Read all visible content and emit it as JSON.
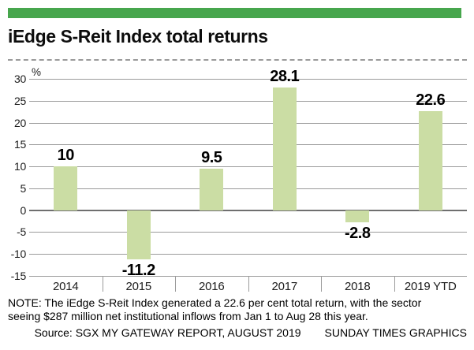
{
  "header": {
    "title": "iEdge S-Reit Index total returns"
  },
  "colors": {
    "accent_green": "#47a64d",
    "bar_green": "#cbdda4",
    "grid_gray": "#9b9b9b",
    "zero_line_gray": "#6f6f6f"
  },
  "chart_data": {
    "type": "bar",
    "title": "iEdge S-Reit Index total returns",
    "categories": [
      "2014",
      "2015",
      "2016",
      "2017",
      "2018",
      "2019 YTD"
    ],
    "values": [
      10,
      -11.2,
      9.5,
      28.1,
      -2.8,
      22.6
    ],
    "value_labels": [
      "10",
      "-11.2",
      "9.5",
      "28.1",
      "-2.8",
      "22.6"
    ],
    "xlabel": "",
    "ylabel": "%",
    "ylim": [
      -15,
      30
    ],
    "yticks": [
      30,
      25,
      20,
      15,
      10,
      5,
      0,
      -5,
      -10,
      -15
    ],
    "grid": true,
    "legend_position": "none",
    "bar_color": "#cbdda4"
  },
  "note": {
    "lines": [
      "NOTE: The iEdge S-Reit Index generated a 22.6 per cent total return, with the sector",
      "seeing $287 million net institutional inflows from Jan 1 to Aug 28 this year."
    ]
  },
  "source": {
    "label": "Source: SGX MY GATEWAY REPORT, AUGUST 2019",
    "credit": "SUNDAY TIMES GRAPHICS"
  }
}
